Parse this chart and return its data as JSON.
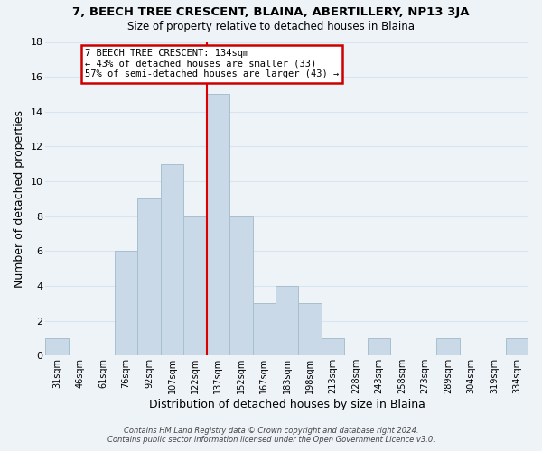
{
  "title": "7, BEECH TREE CRESCENT, BLAINA, ABERTILLERY, NP13 3JA",
  "subtitle": "Size of property relative to detached houses in Blaina",
  "xlabel": "Distribution of detached houses by size in Blaina",
  "ylabel": "Number of detached properties",
  "footer_line1": "Contains HM Land Registry data © Crown copyright and database right 2024.",
  "footer_line2": "Contains public sector information licensed under the Open Government Licence v3.0.",
  "bin_labels": [
    "31sqm",
    "46sqm",
    "61sqm",
    "76sqm",
    "92sqm",
    "107sqm",
    "122sqm",
    "137sqm",
    "152sqm",
    "167sqm",
    "183sqm",
    "198sqm",
    "213sqm",
    "228sqm",
    "243sqm",
    "258sqm",
    "273sqm",
    "289sqm",
    "304sqm",
    "319sqm",
    "334sqm"
  ],
  "bar_heights": [
    1,
    0,
    0,
    6,
    9,
    11,
    8,
    15,
    8,
    3,
    4,
    3,
    1,
    0,
    1,
    0,
    0,
    1,
    0,
    0,
    1
  ],
  "bar_color": "#c9d9e8",
  "bar_edge_color": "#a8bfcf",
  "highlight_bar_index": 7,
  "highlight_color": "#dd0000",
  "ylim": [
    0,
    18
  ],
  "yticks": [
    0,
    2,
    4,
    6,
    8,
    10,
    12,
    14,
    16,
    18
  ],
  "annotation_title": "7 BEECH TREE CRESCENT: 134sqm",
  "annotation_line1": "← 43% of detached houses are smaller (33)",
  "annotation_line2": "57% of semi-detached houses are larger (43) →",
  "annotation_box_color": "#ffffff",
  "annotation_box_edge": "#cc0000",
  "grid_color": "#d8e4ee",
  "background_color": "#eef3f8"
}
